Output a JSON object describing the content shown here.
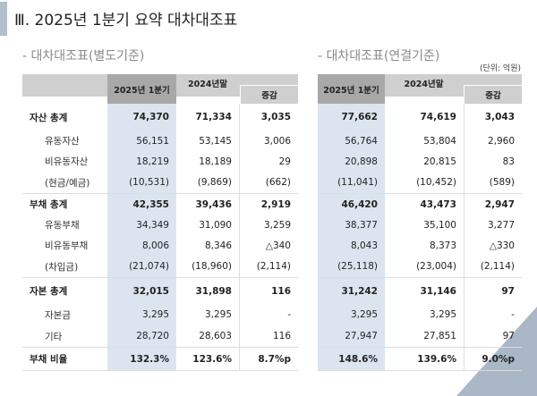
{
  "title": "Ⅲ. 2025년 1분기 요약 대차대조표",
  "unit_note": "(단위: 억원)",
  "columns": {
    "current": "2025년 1분기",
    "prior": "2024년말",
    "change": "증감"
  },
  "separate": {
    "subtitle": "- 대차대조표(별도기준)",
    "rows": [
      {
        "label": "자산 총계",
        "type": "total",
        "values": [
          "74,370",
          "71,334",
          "3,035"
        ]
      },
      {
        "label": "유동자산",
        "type": "sub",
        "values": [
          "56,151",
          "53,145",
          "3,006"
        ]
      },
      {
        "label": "비유동자산",
        "type": "sub",
        "values": [
          "18,219",
          "18,189",
          "29"
        ]
      },
      {
        "label": "(현금/예금)",
        "type": "sub",
        "values": [
          "(10,531)",
          "(9,869)",
          "(662)"
        ]
      },
      {
        "label": "부채 총계",
        "type": "total",
        "values": [
          "42,355",
          "39,436",
          "2,919"
        ]
      },
      {
        "label": "유동부채",
        "type": "sub",
        "values": [
          "34,349",
          "31,090",
          "3,259"
        ]
      },
      {
        "label": "비유동부채",
        "type": "sub",
        "values": [
          "8,006",
          "8,346",
          "△340"
        ]
      },
      {
        "label": "(차입금)",
        "type": "sub",
        "values": [
          "(21,074)",
          "(18,960)",
          "(2,114)"
        ]
      },
      {
        "label": "자본 총계",
        "type": "total",
        "values": [
          "32,015",
          "31,898",
          "116"
        ]
      },
      {
        "label": "자본금",
        "type": "sub",
        "values": [
          "3,295",
          "3,295",
          "-"
        ]
      },
      {
        "label": "기타",
        "type": "sub",
        "values": [
          "28,720",
          "28,603",
          "116"
        ]
      },
      {
        "label": "부채 비율",
        "type": "total",
        "values": [
          "132.3%",
          "123.6%",
          "8.7%p"
        ]
      }
    ]
  },
  "consolidated": {
    "subtitle": "- 대차대조표(연결기준)",
    "rows": [
      {
        "type": "total",
        "values": [
          "77,662",
          "74,619",
          "3,043"
        ]
      },
      {
        "type": "sub",
        "values": [
          "56,764",
          "53,804",
          "2,960"
        ]
      },
      {
        "type": "sub",
        "values": [
          "20,898",
          "20,815",
          "83"
        ]
      },
      {
        "type": "sub",
        "values": [
          "(11,041)",
          "(10,452)",
          "(589)"
        ]
      },
      {
        "type": "total",
        "values": [
          "46,420",
          "43,473",
          "2,947"
        ]
      },
      {
        "type": "sub",
        "values": [
          "38,377",
          "35,100",
          "3,277"
        ]
      },
      {
        "type": "sub",
        "values": [
          "8,043",
          "8,373",
          "△330"
        ]
      },
      {
        "type": "sub",
        "values": [
          "(25,118)",
          "(23,004)",
          "(2,114)"
        ]
      },
      {
        "type": "total",
        "values": [
          "31,242",
          "31,146",
          "97"
        ]
      },
      {
        "type": "sub",
        "values": [
          "3,295",
          "3,295",
          "-"
        ]
      },
      {
        "type": "sub",
        "values": [
          "27,947",
          "27,851",
          "97"
        ]
      },
      {
        "type": "total",
        "values": [
          "148.6%",
          "139.6%",
          "9.0%p"
        ]
      }
    ]
  },
  "colors": {
    "highlight_column": "#dce5ef",
    "header_dark": "#a8a8a8",
    "header_light": "#cfcfcf",
    "accent": "#a9b7c7"
  }
}
